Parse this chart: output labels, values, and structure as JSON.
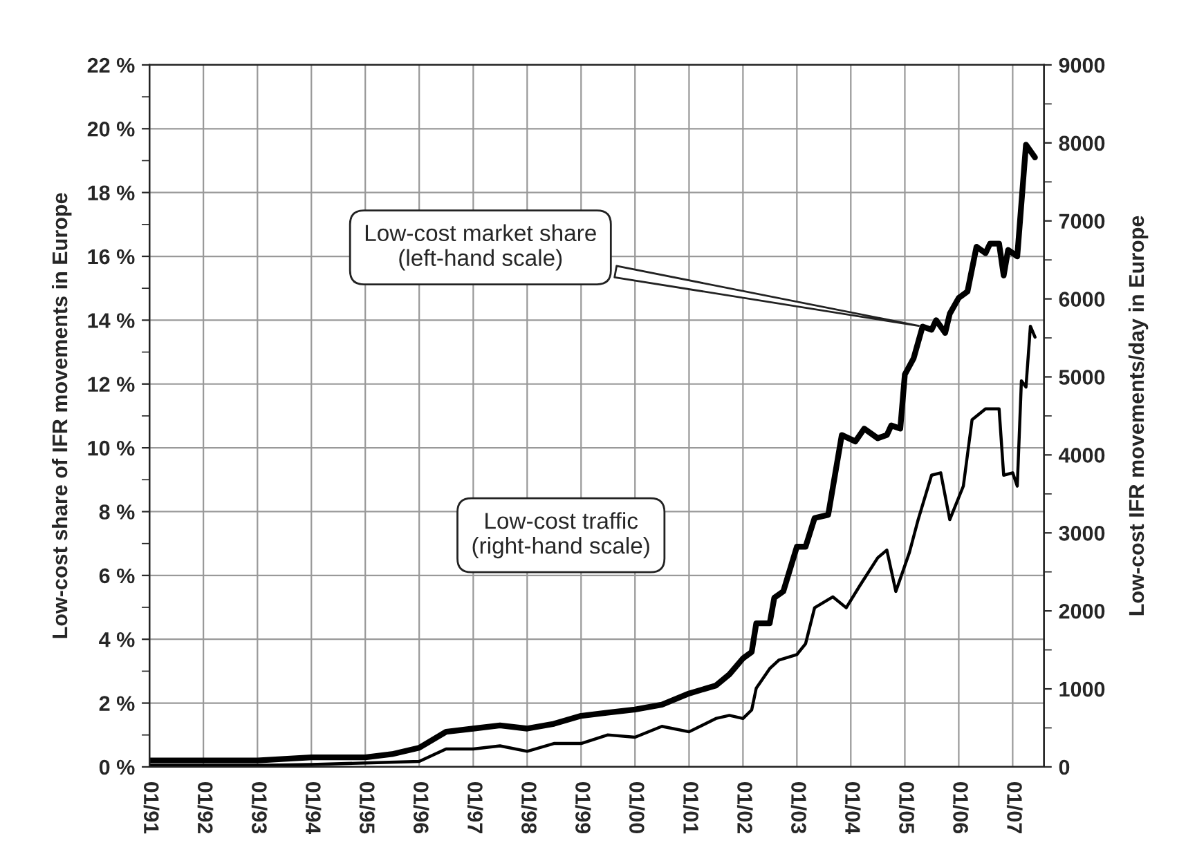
{
  "chart_data": {
    "type": "line",
    "ylabel": "Low-cost share of IFR movements in Europe",
    "y2label": "Low-cost IFR movements/day in Europe",
    "xlim": [
      "1991-01",
      "2007-08"
    ],
    "xticks": [
      {
        "value": "1991-01",
        "label": "01/91"
      },
      {
        "value": "1992-01",
        "label": "01/92"
      },
      {
        "value": "1993-01",
        "label": "01/93"
      },
      {
        "value": "1994-01",
        "label": "01/94"
      },
      {
        "value": "1995-01",
        "label": "01/95"
      },
      {
        "value": "1996-01",
        "label": "01/96"
      },
      {
        "value": "1997-01",
        "label": "01/97"
      },
      {
        "value": "1998-01",
        "label": "01/98"
      },
      {
        "value": "1999-01",
        "label": "01/99"
      },
      {
        "value": "2000-01",
        "label": "01/00"
      },
      {
        "value": "2001-01",
        "label": "01/01"
      },
      {
        "value": "2002-01",
        "label": "01/02"
      },
      {
        "value": "2003-01",
        "label": "01/03"
      },
      {
        "value": "2004-01",
        "label": "01/04"
      },
      {
        "value": "2005-01",
        "label": "01/05"
      },
      {
        "value": "2006-01",
        "label": "01/06"
      },
      {
        "value": "2007-01",
        "label": "01/07"
      }
    ],
    "ylim": [
      0,
      22
    ],
    "yticks": [
      {
        "value": 0,
        "label": "0 %"
      },
      {
        "value": 1,
        "label": null
      },
      {
        "value": 2,
        "label": "2 %"
      },
      {
        "value": 3,
        "label": null
      },
      {
        "value": 4,
        "label": "4 %"
      },
      {
        "value": 5,
        "label": null
      },
      {
        "value": 6,
        "label": "6 %"
      },
      {
        "value": 7,
        "label": null
      },
      {
        "value": 8,
        "label": "8 %"
      },
      {
        "value": 9,
        "label": null
      },
      {
        "value": 10,
        "label": "10 %"
      },
      {
        "value": 11,
        "label": null
      },
      {
        "value": 12,
        "label": "12 %"
      },
      {
        "value": 13,
        "label": null
      },
      {
        "value": 14,
        "label": "14 %"
      },
      {
        "value": 15,
        "label": null
      },
      {
        "value": 16,
        "label": "16 %"
      },
      {
        "value": 17,
        "label": null
      },
      {
        "value": 18,
        "label": "18 %"
      },
      {
        "value": 19,
        "label": null
      },
      {
        "value": 20,
        "label": "20 %"
      },
      {
        "value": 21,
        "label": null
      },
      {
        "value": 22,
        "label": "22 %"
      }
    ],
    "y2lim": [
      0,
      9000
    ],
    "y2ticks": [
      0,
      {
        "value": 500,
        "label": null
      },
      1000,
      {
        "value": 1500,
        "label": null
      },
      2000,
      {
        "value": 2500,
        "label": null
      },
      3000,
      {
        "value": 3500,
        "label": null
      },
      4000,
      {
        "value": 4500,
        "label": null
      },
      5000,
      {
        "value": 5500,
        "label": null
      },
      6000,
      {
        "value": 6500,
        "label": null
      },
      7000,
      {
        "value": 7500,
        "label": null
      },
      8000,
      {
        "value": 8500,
        "label": null
      },
      9000
    ],
    "grid": true,
    "series": [
      {
        "color": "#000000",
        "x": [
          "1991-01",
          "1992-01",
          "1993-01",
          "1994-01",
          "1995-01",
          "1995-07",
          "1996-01",
          "1996-07",
          "1997-01",
          "1997-07",
          "1998-01",
          "1998-07",
          "1999-01",
          "1999-07",
          "2000-01",
          "2000-07",
          "2001-01",
          "2001-07",
          "2001-10",
          "2002-01",
          "2002-03",
          "2002-04",
          "2002-07",
          "2002-08",
          "2002-10",
          "2003-01",
          "2003-03",
          "2003-05",
          "2003-08",
          "2003-11",
          "2004-02",
          "2004-04",
          "2004-07",
          "2004-09",
          "2004-10",
          "2004-12",
          "2005-01",
          "2005-03",
          "2005-05",
          "2005-07",
          "2005-08",
          "2005-10",
          "2005-11",
          "2006-01",
          "2006-03",
          "2006-05",
          "2006-07",
          "2006-08",
          "2006-10",
          "2006-11",
          "2006-12",
          "2007-02",
          "2007-04",
          "2007-06"
        ],
        "values": [
          0.2,
          0.2,
          0.2,
          0.3,
          0.3,
          0.4,
          0.6,
          1.1,
          1.2,
          1.3,
          1.2,
          1.35,
          1.6,
          1.7,
          1.8,
          1.95,
          2.3,
          2.55,
          2.9,
          3.4,
          3.6,
          4.5,
          4.5,
          5.3,
          5.5,
          6.9,
          6.9,
          7.8,
          7.9,
          10.4,
          10.2,
          10.6,
          10.3,
          10.4,
          10.7,
          10.6,
          12.3,
          12.8,
          13.8,
          13.7,
          14.0,
          13.6,
          14.2,
          14.7,
          14.9,
          16.3,
          16.1,
          16.4,
          16.4,
          15.4,
          16.2,
          16.0,
          19.5,
          19.1
        ]
      },
      {
        "color": "#000000",
        "axis": "y2",
        "x": [
          "1991-01",
          "1992-01",
          "1993-01",
          "1994-01",
          "1995-01",
          "1996-01",
          "1996-07",
          "1997-01",
          "1997-07",
          "1998-01",
          "1998-07",
          "1999-01",
          "1999-07",
          "2000-01",
          "2000-07",
          "2001-01",
          "2001-07",
          "2001-10",
          "2002-01",
          "2002-03",
          "2002-04",
          "2002-07",
          "2002-09",
          "2003-01",
          "2003-03",
          "2003-05",
          "2003-09",
          "2003-12",
          "2004-03",
          "2004-07",
          "2004-09",
          "2004-11",
          "2005-02",
          "2005-04",
          "2005-07",
          "2005-09",
          "2005-11",
          "2006-02",
          "2006-04",
          "2006-07",
          "2006-10",
          "2006-11",
          "2007-01",
          "2007-02",
          "2007-03",
          "2007-04",
          "2007-05",
          "2007-06"
        ],
        "values": [
          20,
          20,
          20,
          30,
          50,
          70,
          230,
          230,
          270,
          200,
          300,
          300,
          410,
          380,
          520,
          450,
          620,
          660,
          620,
          730,
          1010,
          1260,
          1370,
          1440,
          1580,
          2040,
          2180,
          2040,
          2320,
          2680,
          2780,
          2250,
          2750,
          3170,
          3740,
          3770,
          3170,
          3600,
          4450,
          4590,
          4590,
          3740,
          3770,
          3600,
          4950,
          4870,
          5650,
          5510
        ]
      }
    ],
    "annotations": [
      {
        "text": "Low-cost market share\n(left-hand scale)",
        "x": "2005-05",
        "y": 13.8
      },
      "Low-cost traffic\n(right-hand scale)"
    ]
  }
}
